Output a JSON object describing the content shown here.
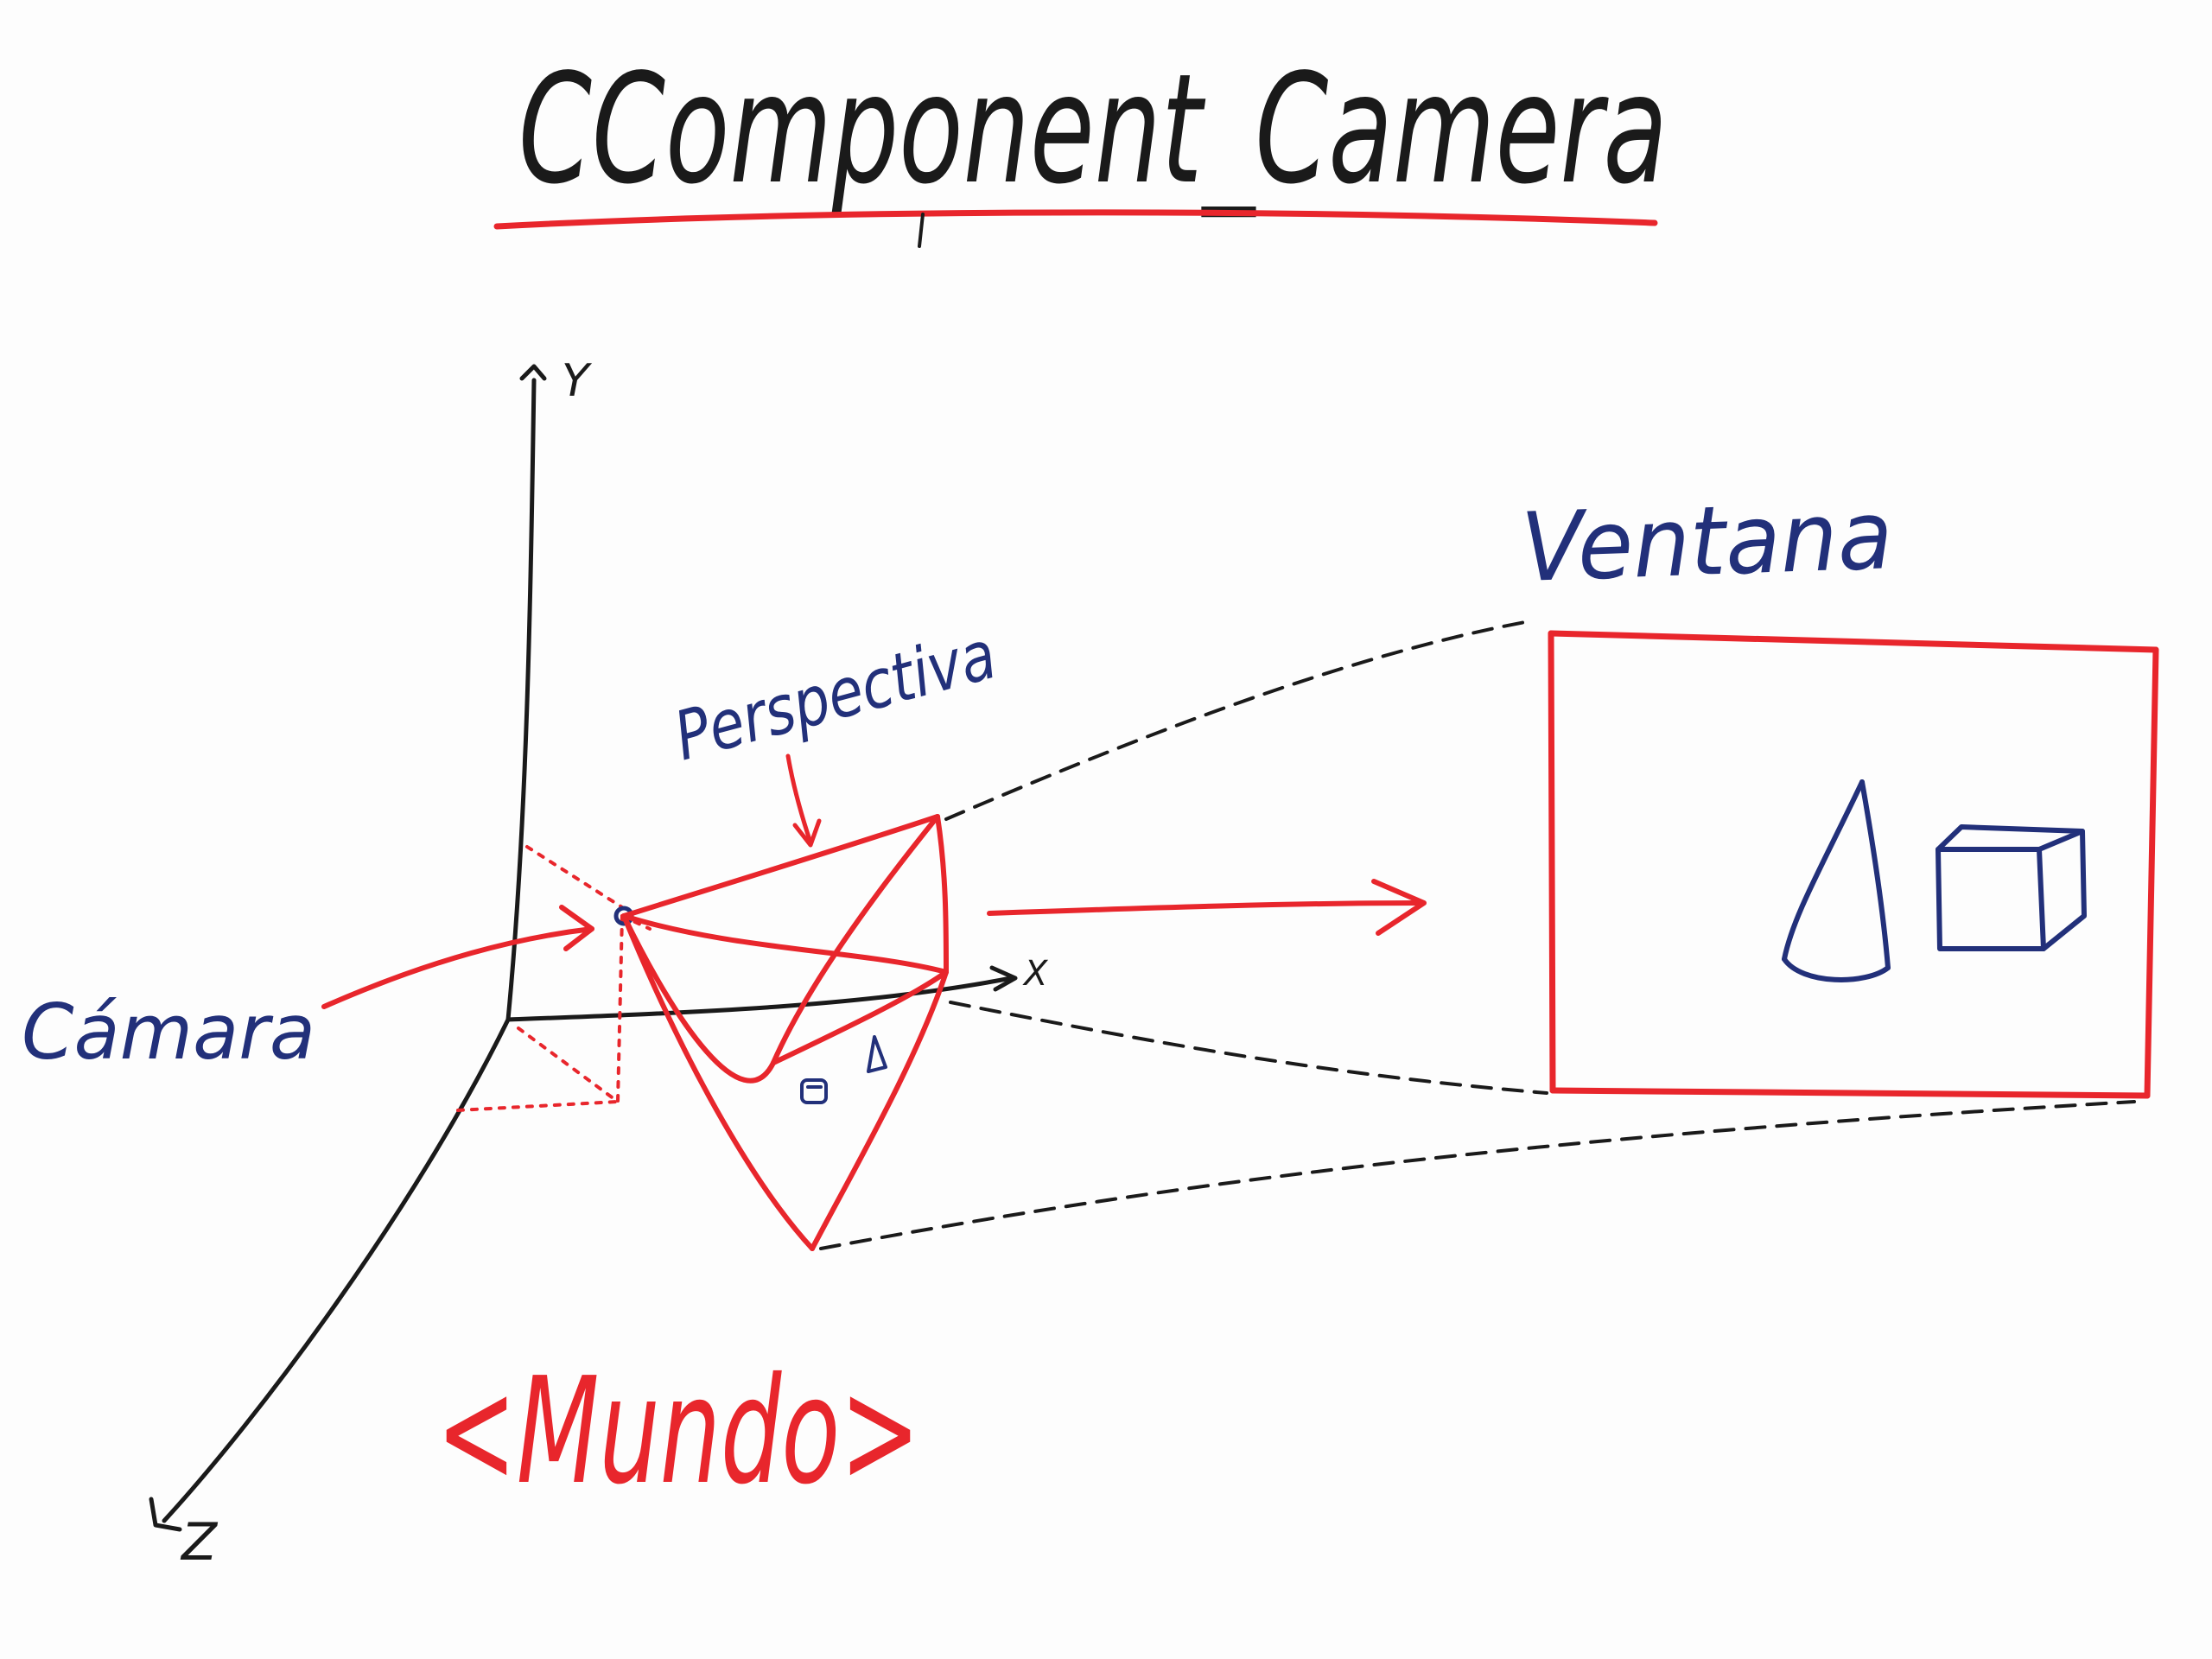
{
  "title": "CComponent_Camera",
  "axes": {
    "y_label": "Y",
    "x_label": "X",
    "z_label": "Z"
  },
  "labels": {
    "camera": "Cámara",
    "perspective": "Perspectiva",
    "window": "Ventana",
    "world": "<Mundo>"
  },
  "colors": {
    "ink_black": "#1a1a1a",
    "ink_red": "#e8262c",
    "ink_blue": "#22307a",
    "board": "#fdfdfd"
  }
}
